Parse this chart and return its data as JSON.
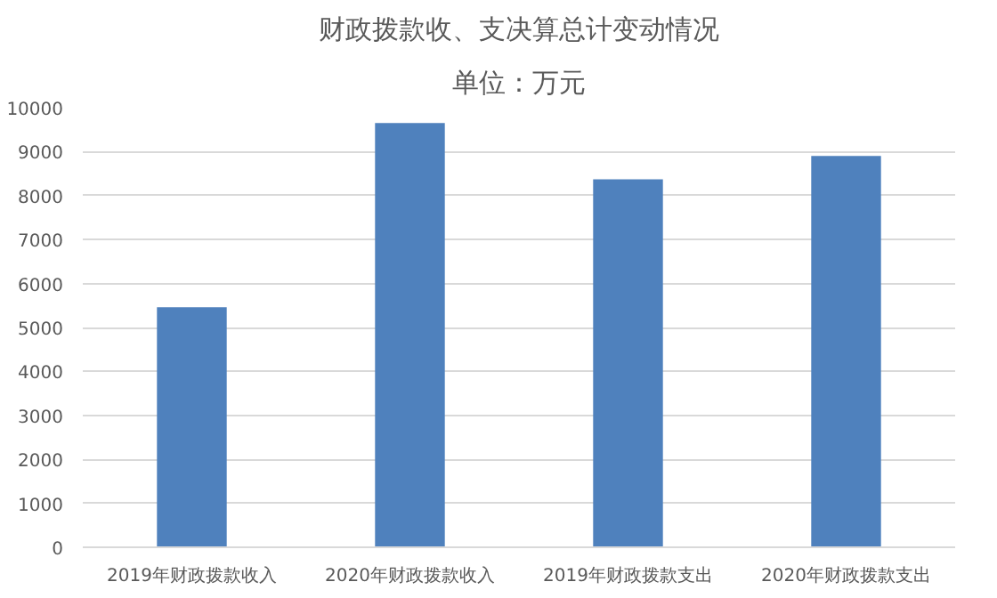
{
  "chart_data": {
    "type": "bar",
    "title": "财政拨款收、支决算总计变动情况",
    "subtitle": "单位：万元",
    "categories": [
      "2019年财政拨款收入",
      "2020年财政拨款收入",
      "2019年财政拨款支出",
      "2020年财政拨款支出"
    ],
    "values": [
      5460,
      9650,
      8370,
      8900
    ],
    "color": "#4f81bd",
    "ylim": [
      0,
      10000
    ],
    "yticks": [
      0,
      1000,
      2000,
      3000,
      4000,
      5000,
      6000,
      7000,
      8000,
      9000,
      10000
    ],
    "grid": "y"
  }
}
